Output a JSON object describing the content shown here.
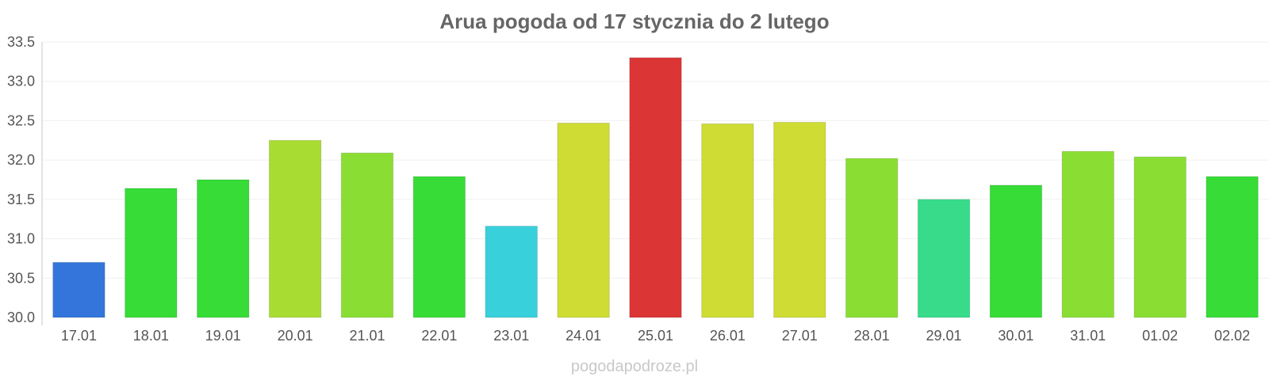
{
  "chart_data": {
    "type": "bar",
    "title": "Arua pogoda od 17 stycznia do 2 lutego",
    "xlabel": "",
    "ylabel": "",
    "ylim": [
      30.0,
      33.5
    ],
    "yticks": [
      "30.0",
      "30.5",
      "31.0",
      "31.5",
      "32.0",
      "32.5",
      "33.0",
      "33.5"
    ],
    "grid": true,
    "legend": "none",
    "categories": [
      "17.01",
      "18.01",
      "19.01",
      "20.01",
      "21.01",
      "22.01",
      "23.01",
      "24.01",
      "25.01",
      "26.01",
      "27.01",
      "28.01",
      "29.01",
      "30.01",
      "31.01",
      "01.02",
      "02.02"
    ],
    "values": [
      30.7,
      31.64,
      31.75,
      32.25,
      32.09,
      31.79,
      31.16,
      32.47,
      33.3,
      32.46,
      32.48,
      32.02,
      31.5,
      31.68,
      32.11,
      32.04,
      31.79
    ],
    "colors": [
      "#3375db",
      "#37dc37",
      "#37dc37",
      "#a8dc33",
      "#8ade33",
      "#37dc37",
      "#37d0db",
      "#cfdc33",
      "#db3535",
      "#cfdc33",
      "#cfdc33",
      "#8ade33",
      "#37db8a",
      "#37dc37",
      "#8ade33",
      "#8ade33",
      "#37dc37"
    ]
  },
  "watermark": "pogodapodroze.pl"
}
